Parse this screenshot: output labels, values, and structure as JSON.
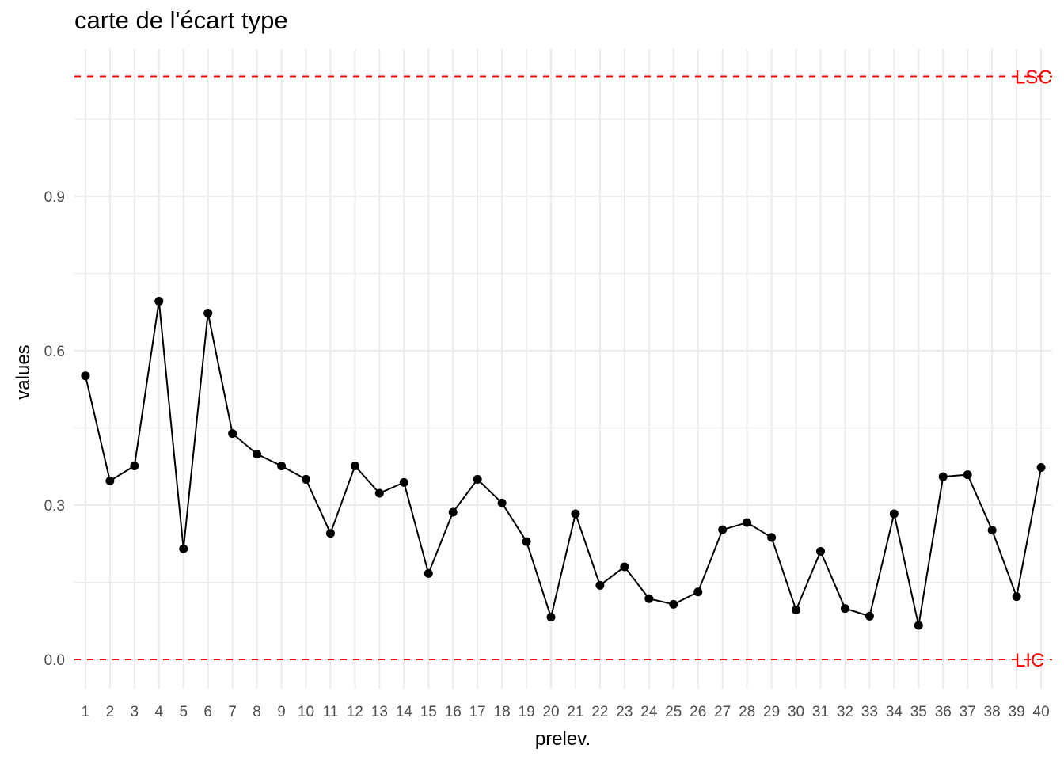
{
  "chart_data": {
    "type": "line",
    "title": "carte de l'écart type",
    "xlabel": "prelev.",
    "ylabel": "values",
    "x": [
      1,
      2,
      3,
      4,
      5,
      6,
      7,
      8,
      9,
      10,
      11,
      12,
      13,
      14,
      15,
      16,
      17,
      18,
      19,
      20,
      21,
      22,
      23,
      24,
      25,
      26,
      27,
      28,
      29,
      30,
      31,
      32,
      33,
      34,
      35,
      36,
      37,
      38,
      39,
      40
    ],
    "values": [
      0.551,
      0.347,
      0.376,
      0.696,
      0.215,
      0.673,
      0.439,
      0.399,
      0.376,
      0.35,
      0.245,
      0.376,
      0.323,
      0.344,
      0.167,
      0.286,
      0.35,
      0.304,
      0.229,
      0.082,
      0.283,
      0.144,
      0.18,
      0.118,
      0.107,
      0.131,
      0.252,
      0.266,
      0.237,
      0.096,
      0.21,
      0.099,
      0.084,
      0.283,
      0.066,
      0.355,
      0.359,
      0.251,
      0.122,
      0.373
    ],
    "xlim": [
      0.55,
      40.45
    ],
    "ylim": [
      -0.057,
      1.186
    ],
    "yticks": [
      0.0,
      0.3,
      0.6,
      0.9
    ],
    "ytick_labels": [
      "0.0",
      "0.3",
      "0.6",
      "0.9"
    ],
    "control_limits": [
      {
        "name": "LSC",
        "value": 1.133,
        "color": "#ff0000"
      },
      {
        "name": "LIC",
        "value": 0.0,
        "color": "#ff0000"
      }
    ],
    "line_color": "#000000",
    "grid": true
  }
}
